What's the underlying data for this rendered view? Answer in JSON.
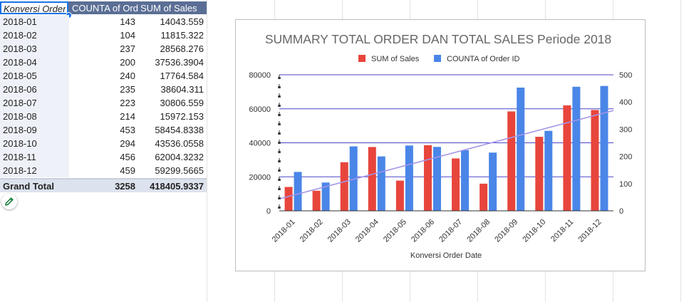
{
  "pivot": {
    "headers": [
      "Konversi Order",
      "COUNTA of Ord",
      "SUM of Sales"
    ],
    "rows": [
      {
        "date": "2018-01",
        "count": "143",
        "sum": "14043.559"
      },
      {
        "date": "2018-02",
        "count": "104",
        "sum": "11815.322"
      },
      {
        "date": "2018-03",
        "count": "237",
        "sum": "28568.276"
      },
      {
        "date": "2018-04",
        "count": "200",
        "sum": "37536.3904"
      },
      {
        "date": "2018-05",
        "count": "240",
        "sum": "17764.584"
      },
      {
        "date": "2018-06",
        "count": "235",
        "sum": "38604.311"
      },
      {
        "date": "2018-07",
        "count": "223",
        "sum": "30806.559"
      },
      {
        "date": "2018-08",
        "count": "214",
        "sum": "15972.153"
      },
      {
        "date": "2018-09",
        "count": "453",
        "sum": "58454.8338"
      },
      {
        "date": "2018-10",
        "count": "294",
        "sum": "43536.0558"
      },
      {
        "date": "2018-11",
        "count": "456",
        "sum": "62004.3232"
      },
      {
        "date": "2018-12",
        "count": "459",
        "sum": "59299.5665"
      }
    ],
    "grand_total": {
      "label": "Grand Total",
      "count": "3258",
      "sum": "418405.9337"
    },
    "header_color": "#5b6f95"
  },
  "chart_data": {
    "type": "bar",
    "title": "SUMMARY TOTAL ORDER DAN TOTAL SALES Periode 2018",
    "xlabel": "Konversi Order Date",
    "categories": [
      "2018-01",
      "2018-02",
      "2018-03",
      "2018-04",
      "2018-05",
      "2018-06",
      "2018-07",
      "2018-08",
      "2018-09",
      "2018-10",
      "2018-11",
      "2018-12"
    ],
    "series": [
      {
        "name": "SUM of Sales",
        "axis": "left",
        "color": "#e8453c",
        "values": [
          14043.559,
          11815.322,
          28568.276,
          37536.3904,
          17764.584,
          38604.311,
          30806.559,
          15972.153,
          58454.8338,
          43536.0558,
          62004.3232,
          59299.5665
        ]
      },
      {
        "name": "COUNTA of Order ID",
        "axis": "right",
        "color": "#4a86e8",
        "values": [
          143,
          104,
          237,
          200,
          240,
          235,
          223,
          214,
          453,
          294,
          456,
          459
        ]
      }
    ],
    "left_axis": {
      "min": 0,
      "max": 80000,
      "ticks": [
        "0",
        "20000",
        "40000",
        "60000",
        "80000"
      ]
    },
    "right_axis": {
      "min": 0,
      "max": 500,
      "ticks": [
        "0",
        "100",
        "200",
        "300",
        "400",
        "500"
      ]
    },
    "trendline": {
      "color": "#a394e8",
      "start": 7000,
      "end": 59000
    },
    "legend_position": "top",
    "grid": true
  }
}
